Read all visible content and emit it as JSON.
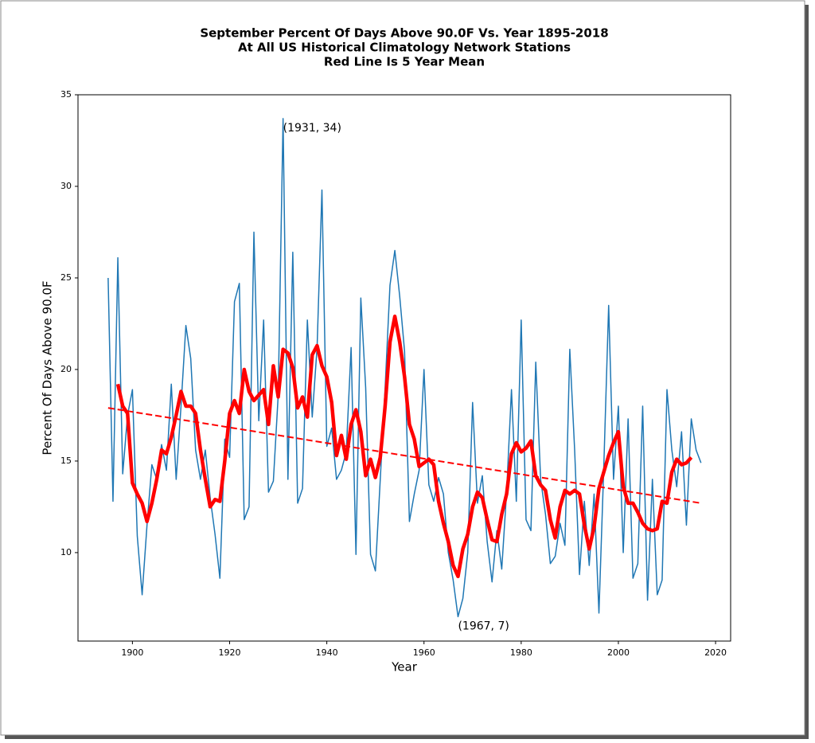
{
  "chart_data": {
    "type": "line",
    "title": [
      "September Percent Of Days Above 90.0F Vs. Year 1895-2018",
      "At All US Historical Climatology Network Stations",
      "Red Line Is 5 Year Mean"
    ],
    "x_label": "Year",
    "y_label": "Percent Of Days Above 90.0F",
    "xlim": [
      1888.8,
      2023.1
    ],
    "ylim": [
      5.17,
      35
    ],
    "xticks": [
      1900,
      1920,
      1940,
      1960,
      1980,
      2000,
      2020
    ],
    "yticks": [
      10,
      15,
      20,
      25,
      30,
      35
    ],
    "series": [
      {
        "color": "#1f77b4",
        "width": 1.5,
        "dash": false,
        "x": [
          1895,
          1896,
          1897,
          1898,
          1899,
          1900,
          1901,
          1902,
          1903,
          1904,
          1905,
          1906,
          1907,
          1908,
          1909,
          1910,
          1911,
          1912,
          1913,
          1914,
          1915,
          1916,
          1917,
          1918,
          1919,
          1920,
          1921,
          1922,
          1923,
          1924,
          1925,
          1926,
          1927,
          1928,
          1929,
          1930,
          1931,
          1932,
          1933,
          1934,
          1935,
          1936,
          1937,
          1938,
          1939,
          1940,
          1941,
          1942,
          1943,
          1944,
          1945,
          1946,
          1947,
          1948,
          1949,
          1950,
          1951,
          1952,
          1953,
          1954,
          1955,
          1956,
          1957,
          1958,
          1959,
          1960,
          1961,
          1962,
          1963,
          1964,
          1965,
          1966,
          1967,
          1968,
          1969,
          1970,
          1971,
          1972,
          1973,
          1974,
          1975,
          1976,
          1977,
          1978,
          1979,
          1980,
          1981,
          1982,
          1983,
          1984,
          1985,
          1986,
          1987,
          1988,
          1989,
          1990,
          1991,
          1992,
          1993,
          1994,
          1995,
          1996,
          1997,
          1998,
          1999,
          2000,
          2001,
          2002,
          2003,
          2004,
          2005,
          2006,
          2007,
          2008,
          2009,
          2010,
          2011,
          2012,
          2013,
          2014,
          2015,
          2016,
          2017
        ],
        "values": [
          25.0,
          12.8,
          26.1,
          14.3,
          17.5,
          18.9,
          10.9,
          7.7,
          11.5,
          14.8,
          14.0,
          15.9,
          14.5,
          19.2,
          14.0,
          18.0,
          22.4,
          20.6,
          15.6,
          14.0,
          15.6,
          13.0,
          11.0,
          8.6,
          16.2,
          15.2,
          23.7,
          24.7,
          11.8,
          12.5,
          27.5,
          17.2,
          22.7,
          13.3,
          13.9,
          18.6,
          33.7,
          14.0,
          26.4,
          12.7,
          13.5,
          22.7,
          17.4,
          21.2,
          29.8,
          15.8,
          16.8,
          14.0,
          14.5,
          15.5,
          21.2,
          9.9,
          23.9,
          19.0,
          9.9,
          9.0,
          14.0,
          19.0,
          24.6,
          26.5,
          24.0,
          21.0,
          11.7,
          13.2,
          14.5,
          20.0,
          13.7,
          12.8,
          14.1,
          13.2,
          10.0,
          8.5,
          6.5,
          7.5,
          10.0,
          18.2,
          12.7,
          14.2,
          10.6,
          8.4,
          11.2,
          9.1,
          13.3,
          18.9,
          12.8,
          22.7,
          11.8,
          11.2,
          20.4,
          14.0,
          12.1,
          9.4,
          9.8,
          11.6,
          10.4,
          21.1,
          15.6,
          8.8,
          12.8,
          9.3,
          13.2,
          6.7,
          14.7,
          23.5,
          14.0,
          18.0,
          10.0,
          17.3,
          8.6,
          9.4,
          18.0,
          7.4,
          14.0,
          7.7,
          8.5,
          18.9,
          15.6,
          13.6,
          16.6,
          11.5,
          17.3,
          15.6,
          14.9
        ]
      },
      {
        "color": "#ff0000",
        "width": 4.5,
        "dash": false,
        "x": [
          1897,
          1898,
          1899,
          1900,
          1901,
          1902,
          1903,
          1904,
          1905,
          1906,
          1907,
          1908,
          1909,
          1910,
          1911,
          1912,
          1913,
          1914,
          1915,
          1916,
          1917,
          1918,
          1919,
          1920,
          1921,
          1922,
          1923,
          1924,
          1925,
          1926,
          1927,
          1928,
          1929,
          1930,
          1931,
          1932,
          1933,
          1934,
          1935,
          1936,
          1937,
          1938,
          1939,
          1940,
          1941,
          1942,
          1943,
          1944,
          1945,
          1946,
          1947,
          1948,
          1949,
          1950,
          1951,
          1952,
          1953,
          1954,
          1955,
          1956,
          1957,
          1958,
          1959,
          1960,
          1961,
          1962,
          1963,
          1964,
          1965,
          1966,
          1967,
          1968,
          1969,
          1970,
          1971,
          1972,
          1973,
          1974,
          1975,
          1976,
          1977,
          1978,
          1979,
          1980,
          1981,
          1982,
          1983,
          1984,
          1985,
          1986,
          1987,
          1988,
          1989,
          1990,
          1991,
          1992,
          1993,
          1994,
          1995,
          1996,
          1997,
          1998,
          1999,
          2000,
          2001,
          2002,
          2003,
          2004,
          2005,
          2006,
          2007,
          2008,
          2009,
          2010,
          2011,
          2012,
          2013,
          2014,
          2015
        ],
        "values": [
          19.2,
          18.0,
          17.6,
          13.8,
          13.2,
          12.7,
          11.7,
          12.7,
          14.0,
          15.6,
          15.4,
          16.3,
          17.5,
          18.8,
          18.0,
          18.0,
          17.6,
          15.6,
          14.0,
          12.5,
          12.9,
          12.8,
          15.0,
          17.6,
          18.3,
          17.6,
          20.0,
          18.8,
          18.3,
          18.6,
          18.9,
          17.0,
          20.2,
          18.5,
          21.1,
          20.9,
          20.1,
          17.9,
          18.5,
          17.4,
          20.8,
          21.3,
          20.2,
          19.6,
          18.2,
          15.3,
          16.4,
          15.1,
          17.0,
          17.8,
          16.6,
          14.2,
          15.1,
          14.1,
          15.2,
          18.0,
          21.5,
          22.9,
          21.5,
          19.6,
          17.0,
          16.2,
          14.7,
          14.9,
          15.1,
          14.8,
          12.8,
          11.6,
          10.6,
          9.3,
          8.7,
          10.2,
          11.0,
          12.5,
          13.3,
          13.0,
          11.8,
          10.7,
          10.6,
          12.1,
          13.2,
          15.4,
          16.0,
          15.5,
          15.7,
          16.1,
          14.2,
          13.7,
          13.4,
          11.8,
          10.8,
          12.5,
          13.4,
          13.2,
          13.4,
          13.2,
          11.5,
          10.2,
          11.4,
          13.5,
          14.4,
          15.3,
          16.0,
          16.6,
          13.6,
          12.7,
          12.7,
          12.2,
          11.6,
          11.3,
          11.2,
          11.3,
          12.8,
          12.7,
          14.4,
          15.1,
          14.8,
          14.9,
          15.2
        ]
      },
      {
        "color": "#ff0000",
        "width": 2,
        "dash": true,
        "x": [
          1895,
          2017
        ],
        "values": [
          17.9,
          12.7
        ]
      }
    ],
    "annotations": [
      {
        "text": "(1931, 34)",
        "x": 1931,
        "y": 33.7
      },
      {
        "text": "(1967, 7)",
        "x": 1967,
        "y": 6.5
      }
    ]
  }
}
